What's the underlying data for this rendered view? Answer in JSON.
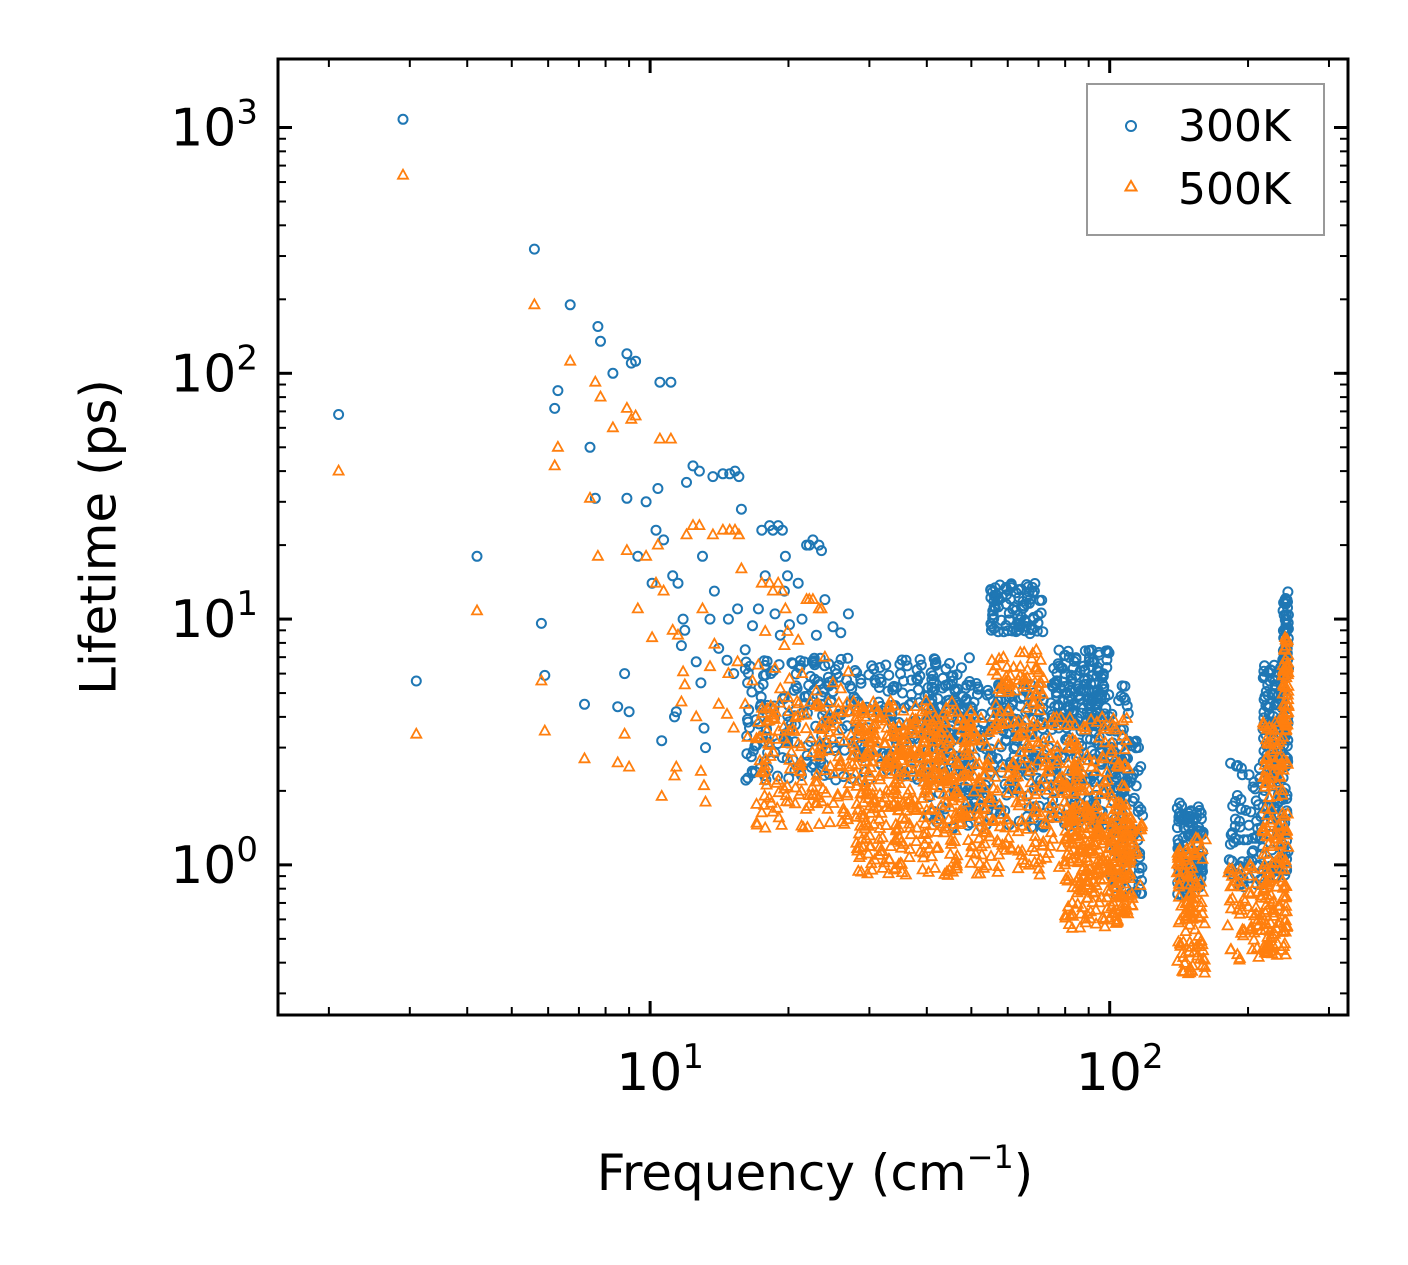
{
  "chart_data": {
    "type": "scatter",
    "title": "",
    "xlabel": "Frequency (cm",
    "xlabel_sup": "−1",
    "xlabel_end": ")",
    "ylabel": "Lifetime (ps)",
    "xscale": "log",
    "yscale": "log",
    "xlim": [
      1.55,
      330
    ],
    "ylim": [
      0.245,
      1900
    ],
    "x_ticks": [
      {
        "value": 10,
        "base": "10",
        "exp": "1"
      },
      {
        "value": 100,
        "base": "10",
        "exp": "2"
      }
    ],
    "y_ticks": [
      {
        "value": 1,
        "base": "10",
        "exp": "0"
      },
      {
        "value": 10,
        "base": "10",
        "exp": "1"
      },
      {
        "value": 100,
        "base": "10",
        "exp": "2"
      },
      {
        "value": 1000,
        "base": "10",
        "exp": "3"
      }
    ],
    "legend_position": "top-right",
    "series": [
      {
        "name": "300K",
        "color": "#1f77b4",
        "marker": "circle",
        "points": [
          [
            2.1,
            68
          ],
          [
            2.9,
            1080
          ],
          [
            3.1,
            5.6
          ],
          [
            4.2,
            18
          ],
          [
            5.6,
            320
          ],
          [
            5.8,
            9.6
          ],
          [
            5.9,
            5.9
          ],
          [
            6.2,
            72
          ],
          [
            6.3,
            85
          ],
          [
            6.7,
            190
          ],
          [
            7.2,
            4.5
          ],
          [
            7.4,
            50
          ],
          [
            7.6,
            31
          ],
          [
            7.7,
            155
          ],
          [
            7.8,
            135
          ],
          [
            8.3,
            100
          ],
          [
            8.5,
            4.4
          ],
          [
            8.8,
            6
          ],
          [
            8.9,
            120
          ],
          [
            8.9,
            31
          ],
          [
            9.0,
            4.2
          ],
          [
            9.1,
            110
          ],
          [
            9.3,
            112
          ],
          [
            9.4,
            18
          ],
          [
            9.8,
            30
          ],
          [
            10.1,
            14
          ],
          [
            10.3,
            23
          ],
          [
            10.4,
            34
          ],
          [
            10.5,
            92
          ],
          [
            10.6,
            3.2
          ],
          [
            10.7,
            21
          ],
          [
            11.1,
            92
          ],
          [
            11.2,
            15
          ],
          [
            11.3,
            4.0
          ],
          [
            11.4,
            4.2
          ],
          [
            11.5,
            14
          ],
          [
            11.8,
            10
          ],
          [
            12.0,
            36
          ],
          [
            12.4,
            42
          ],
          [
            12.6,
            6.7
          ],
          [
            12.8,
            40
          ],
          [
            12.9,
            5.5
          ],
          [
            13.0,
            18
          ],
          [
            13.1,
            3.6
          ],
          [
            13.2,
            3.0
          ],
          [
            13.5,
            10
          ],
          [
            13.7,
            38
          ],
          [
            13.8,
            13
          ],
          [
            14.1,
            7.6
          ],
          [
            14.4,
            39
          ],
          [
            14.7,
            6.8
          ],
          [
            14.8,
            10
          ],
          [
            14.9,
            39
          ],
          [
            15.2,
            6.0
          ],
          [
            15.3,
            40
          ],
          [
            15.5,
            11
          ],
          [
            15.6,
            38
          ],
          [
            15.8,
            28
          ],
          [
            16.1,
            7.5
          ],
          [
            16.3,
            5.5
          ],
          [
            16.7,
            9.4
          ],
          [
            17.2,
            11
          ],
          [
            17.5,
            23
          ],
          [
            17.8,
            15
          ],
          [
            18.2,
            24
          ],
          [
            18.5,
            23
          ],
          [
            18.7,
            10.5
          ],
          [
            19.0,
            24
          ],
          [
            19.2,
            8.6
          ],
          [
            19.4,
            23
          ],
          [
            19.6,
            13
          ],
          [
            19.7,
            18
          ],
          [
            19.9,
            15
          ],
          [
            20.1,
            9.5
          ],
          [
            21.0,
            14
          ],
          [
            21.4,
            10
          ],
          [
            21.9,
            20
          ],
          [
            22.2,
            20
          ],
          [
            22.6,
            21
          ],
          [
            23.0,
            8.6
          ],
          [
            23.3,
            20
          ],
          [
            23.6,
            19
          ],
          [
            24.0,
            12
          ],
          [
            25.0,
            9.3
          ],
          [
            26.0,
            8.8
          ],
          [
            27.0,
            10.5
          ],
          [
            11.9,
            9.0
          ],
          [
            11.7,
            7.8
          ]
        ]
      },
      {
        "name": "500K",
        "color": "#ff7f0e",
        "marker": "triangle",
        "points": [
          [
            2.1,
            40
          ],
          [
            2.9,
            640
          ],
          [
            3.1,
            3.4
          ],
          [
            4.2,
            10.8
          ],
          [
            5.6,
            190
          ],
          [
            5.8,
            5.6
          ],
          [
            5.9,
            3.5
          ],
          [
            6.2,
            42
          ],
          [
            6.3,
            50
          ],
          [
            6.7,
            112
          ],
          [
            7.2,
            2.7
          ],
          [
            7.4,
            31
          ],
          [
            7.6,
            92
          ],
          [
            7.7,
            18
          ],
          [
            7.8,
            80
          ],
          [
            8.3,
            60
          ],
          [
            8.5,
            2.6
          ],
          [
            8.8,
            3.4
          ],
          [
            8.9,
            72
          ],
          [
            8.9,
            19
          ],
          [
            9.0,
            2.5
          ],
          [
            9.1,
            65
          ],
          [
            9.3,
            67
          ],
          [
            9.4,
            11
          ],
          [
            9.8,
            18
          ],
          [
            10.1,
            8.4
          ],
          [
            10.3,
            14
          ],
          [
            10.4,
            20
          ],
          [
            10.5,
            54
          ],
          [
            10.6,
            1.9
          ],
          [
            10.7,
            13
          ],
          [
            11.1,
            54
          ],
          [
            11.2,
            9.0
          ],
          [
            11.3,
            2.3
          ],
          [
            11.4,
            2.5
          ],
          [
            11.5,
            8.6
          ],
          [
            11.8,
            6.1
          ],
          [
            12.0,
            22
          ],
          [
            12.4,
            24
          ],
          [
            12.6,
            4.0
          ],
          [
            12.8,
            24
          ],
          [
            12.9,
            2.4
          ],
          [
            13.0,
            11
          ],
          [
            13.1,
            2.1
          ],
          [
            13.2,
            1.8
          ],
          [
            13.5,
            6.4
          ],
          [
            13.7,
            22
          ],
          [
            13.8,
            7.9
          ],
          [
            14.1,
            4.5
          ],
          [
            14.4,
            23
          ],
          [
            14.7,
            4.1
          ],
          [
            14.8,
            6.0
          ],
          [
            14.9,
            23
          ],
          [
            15.2,
            3.6
          ],
          [
            15.3,
            23
          ],
          [
            15.5,
            6.7
          ],
          [
            15.6,
            22
          ],
          [
            15.8,
            16
          ],
          [
            16.1,
            4.5
          ],
          [
            16.3,
            3.3
          ],
          [
            16.7,
            5.6
          ],
          [
            17.2,
            6.5
          ],
          [
            17.5,
            14
          ],
          [
            17.8,
            8.9
          ],
          [
            18.2,
            14
          ],
          [
            18.5,
            13
          ],
          [
            18.7,
            6.3
          ],
          [
            19.0,
            14
          ],
          [
            19.2,
            5.2
          ],
          [
            19.4,
            13
          ],
          [
            19.6,
            7.8
          ],
          [
            19.7,
            11
          ],
          [
            19.9,
            8.9
          ],
          [
            20.1,
            5.7
          ],
          [
            21.0,
            8.2
          ],
          [
            21.4,
            6.0
          ],
          [
            21.9,
            12
          ],
          [
            22.2,
            12
          ],
          [
            22.6,
            12
          ],
          [
            23.0,
            5.1
          ],
          [
            23.3,
            11
          ],
          [
            23.6,
            11
          ],
          [
            24.0,
            7.0
          ],
          [
            25.0,
            5.5
          ],
          [
            26.0,
            5.2
          ],
          [
            27.0,
            6.1
          ],
          [
            11.9,
            5.4
          ],
          [
            11.7,
            4.6
          ]
        ]
      }
    ],
    "clusters": [
      {
        "series": "300K",
        "x_range": [
          16,
          50
        ],
        "y_range": [
          2.2,
          7.0
        ],
        "count": 360,
        "seed": 11
      },
      {
        "series": "300K",
        "x_range": [
          40,
          110
        ],
        "y_range": [
          1.4,
          5.5
        ],
        "count": 500,
        "seed": 12
      },
      {
        "series": "300K",
        "x_range": [
          55,
          72
        ],
        "y_range": [
          8.5,
          14.0
        ],
        "count": 90,
        "seed": 13
      },
      {
        "series": "300K",
        "x_range": [
          75,
          100
        ],
        "y_range": [
          3.5,
          7.5
        ],
        "count": 120,
        "seed": 14
      },
      {
        "series": "300K",
        "x_range": [
          100,
          118
        ],
        "y_range": [
          0.75,
          3.2
        ],
        "count": 90,
        "seed": 15
      },
      {
        "series": "300K",
        "x_range": [
          140,
          160
        ],
        "y_range": [
          0.75,
          1.8
        ],
        "count": 110,
        "seed": 16
      },
      {
        "series": "300K",
        "x_range": [
          182,
          215
        ],
        "y_range": [
          0.8,
          2.6
        ],
        "count": 70,
        "seed": 17
      },
      {
        "series": "300K",
        "x_range": [
          215,
          245
        ],
        "y_range": [
          0.9,
          6.6
        ],
        "count": 180,
        "seed": 18
      },
      {
        "series": "300K",
        "x_range": [
          238,
          245
        ],
        "y_range": [
          6.0,
          13.0
        ],
        "count": 50,
        "seed": 19
      },
      {
        "series": "500K",
        "x_range": [
          17,
          50
        ],
        "y_range": [
          1.4,
          4.8
        ],
        "count": 360,
        "seed": 21
      },
      {
        "series": "500K",
        "x_range": [
          28,
          110
        ],
        "y_range": [
          0.9,
          4.0
        ],
        "count": 650,
        "seed": 22
      },
      {
        "series": "500K",
        "x_range": [
          55,
          72
        ],
        "y_range": [
          4.0,
          7.5
        ],
        "count": 60,
        "seed": 23
      },
      {
        "series": "500K",
        "x_range": [
          80,
          112
        ],
        "y_range": [
          0.55,
          1.8
        ],
        "count": 200,
        "seed": 24
      },
      {
        "series": "500K",
        "x_range": [
          100,
          118
        ],
        "y_range": [
          0.62,
          1.5
        ],
        "count": 60,
        "seed": 25
      },
      {
        "series": "500K",
        "x_range": [
          140,
          162
        ],
        "y_range": [
          0.36,
          1.3
        ],
        "count": 120,
        "seed": 26
      },
      {
        "series": "500K",
        "x_range": [
          180,
          225
        ],
        "y_range": [
          0.4,
          1.0
        ],
        "count": 70,
        "seed": 27
      },
      {
        "series": "500K",
        "x_range": [
          215,
          245
        ],
        "y_range": [
          0.42,
          4.0
        ],
        "count": 180,
        "seed": 28
      },
      {
        "series": "500K",
        "x_range": [
          238,
          245
        ],
        "y_range": [
          3.5,
          8.5
        ],
        "count": 50,
        "seed": 29
      }
    ]
  }
}
